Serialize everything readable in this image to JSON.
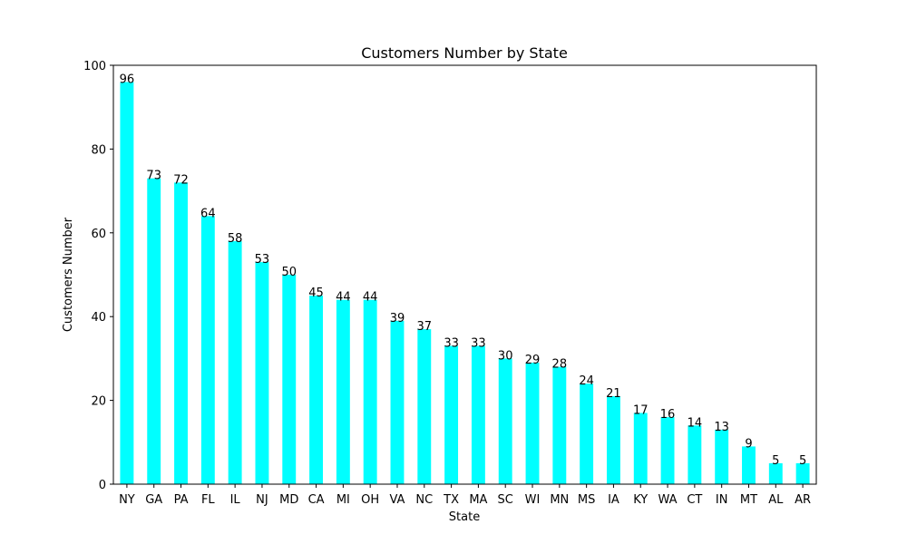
{
  "chart_data": {
    "type": "bar",
    "title": "Customers Number by State",
    "xlabel": "State",
    "ylabel": "Customers Number",
    "categories": [
      "NY",
      "GA",
      "PA",
      "FL",
      "IL",
      "NJ",
      "MD",
      "CA",
      "MI",
      "OH",
      "VA",
      "NC",
      "TX",
      "MA",
      "SC",
      "WI",
      "MN",
      "MS",
      "IA",
      "KY",
      "WA",
      "CT",
      "IN",
      "MT",
      "AL",
      "AR"
    ],
    "values": [
      96,
      73,
      72,
      64,
      58,
      53,
      50,
      45,
      44,
      44,
      39,
      37,
      33,
      33,
      30,
      29,
      28,
      24,
      21,
      17,
      16,
      14,
      13,
      9,
      5,
      5
    ],
    "ylim": [
      0,
      100
    ],
    "yticks": [
      0,
      20,
      40,
      60,
      80,
      100
    ],
    "bar_color": "#00ffff",
    "grid": false,
    "legend": false
  }
}
